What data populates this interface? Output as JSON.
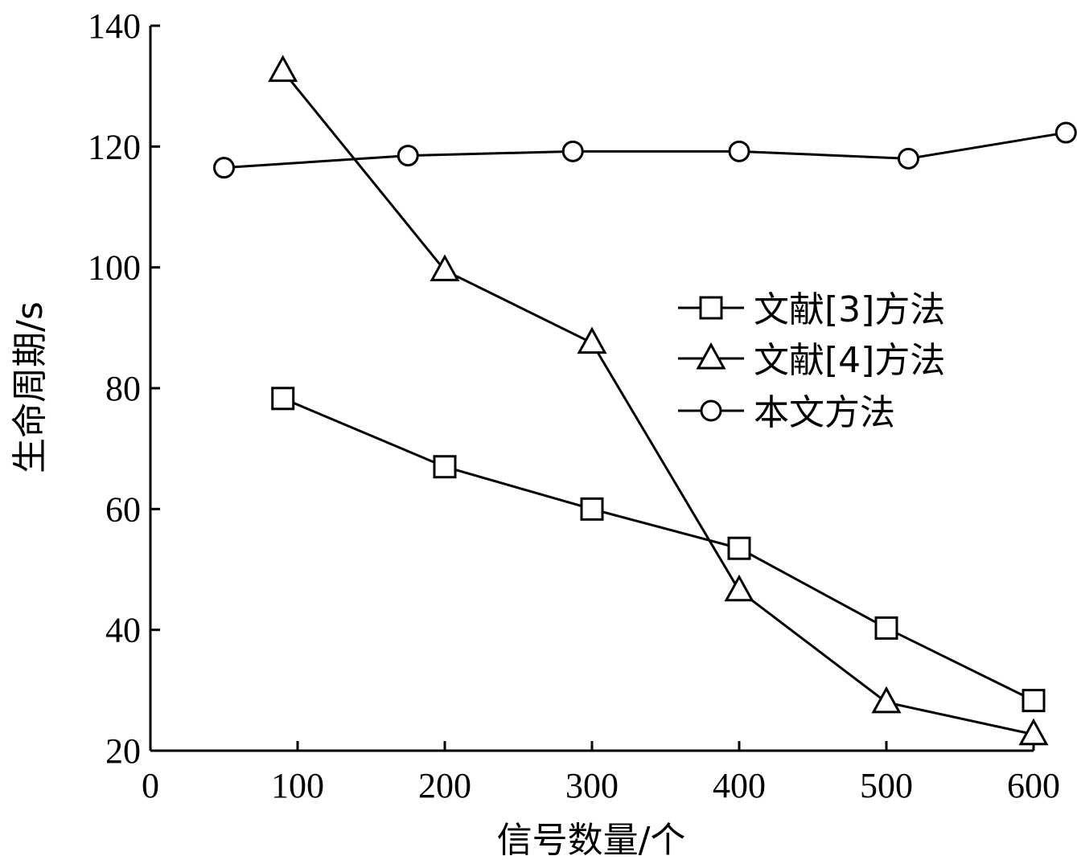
{
  "chart_data": {
    "type": "line",
    "xlabel": "信号数量/个",
    "ylabel": "生命周期/s",
    "xlim": [
      0,
      600
    ],
    "ylim": [
      20,
      140
    ],
    "xticks": [
      "0",
      "100",
      "200",
      "300",
      "400",
      "500",
      "600"
    ],
    "yticks": [
      "20",
      "40",
      "60",
      "80",
      "100",
      "120",
      "140"
    ],
    "grid": false,
    "legend_position": "right",
    "series": [
      {
        "name": "文献[3]方法",
        "marker": "square",
        "points": [
          [
            90,
            78.3
          ],
          [
            200,
            67
          ],
          [
            300,
            60
          ],
          [
            400,
            53.5
          ],
          [
            500,
            40.3
          ],
          [
            600,
            28.3
          ]
        ]
      },
      {
        "name": "文献[4]方法",
        "marker": "triangle",
        "points": [
          [
            90,
            132.5
          ],
          [
            200,
            99.5
          ],
          [
            300,
            87.5
          ],
          [
            400,
            46.5
          ],
          [
            500,
            28
          ],
          [
            600,
            22.7
          ]
        ]
      },
      {
        "name": "本文方法",
        "marker": "circle",
        "points": [
          [
            50,
            116.5
          ],
          [
            175,
            118.5
          ],
          [
            287,
            119.2
          ],
          [
            400,
            119.2
          ],
          [
            515,
            118
          ],
          [
            622,
            122.3
          ]
        ]
      }
    ]
  }
}
